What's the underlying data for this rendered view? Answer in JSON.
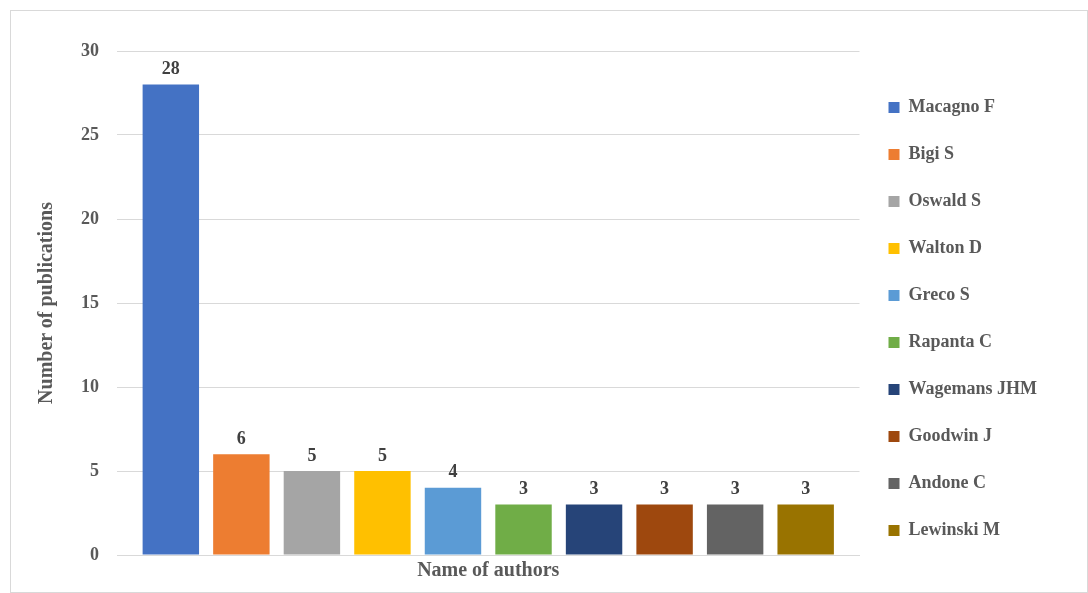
{
  "chart_data": {
    "type": "bar",
    "xlabel": "Name of authors",
    "ylabel": "Number of publications",
    "categories": [
      null
    ],
    "series": [
      {
        "name": "Macagno F",
        "color": "#4472c4",
        "values": [
          28
        ]
      },
      {
        "name": "Bigi S",
        "color": "#ed7d31",
        "values": [
          6
        ]
      },
      {
        "name": "Oswald S",
        "color": "#a5a5a5",
        "values": [
          5
        ]
      },
      {
        "name": "Walton D",
        "color": "#ffc000",
        "values": [
          5
        ]
      },
      {
        "name": "Greco S",
        "color": "#5b9bd5",
        "values": [
          4
        ]
      },
      {
        "name": "Rapanta C",
        "color": "#70ad47",
        "values": [
          3
        ]
      },
      {
        "name": "Wagemans JHM",
        "color": "#264478",
        "values": [
          3
        ]
      },
      {
        "name": "Goodwin J",
        "color": "#9e480e",
        "values": [
          3
        ]
      },
      {
        "name": "Andone C",
        "color": "#636363",
        "values": [
          3
        ]
      },
      {
        "name": "Lewinski M",
        "color": "#997300",
        "values": [
          3
        ]
      }
    ],
    "ylim": [
      0,
      30
    ],
    "yticks": [
      0,
      5,
      10,
      15,
      20,
      25,
      30
    ],
    "grid": "y",
    "legend": "right",
    "tick_labels": "y",
    "data_labels": true
  }
}
